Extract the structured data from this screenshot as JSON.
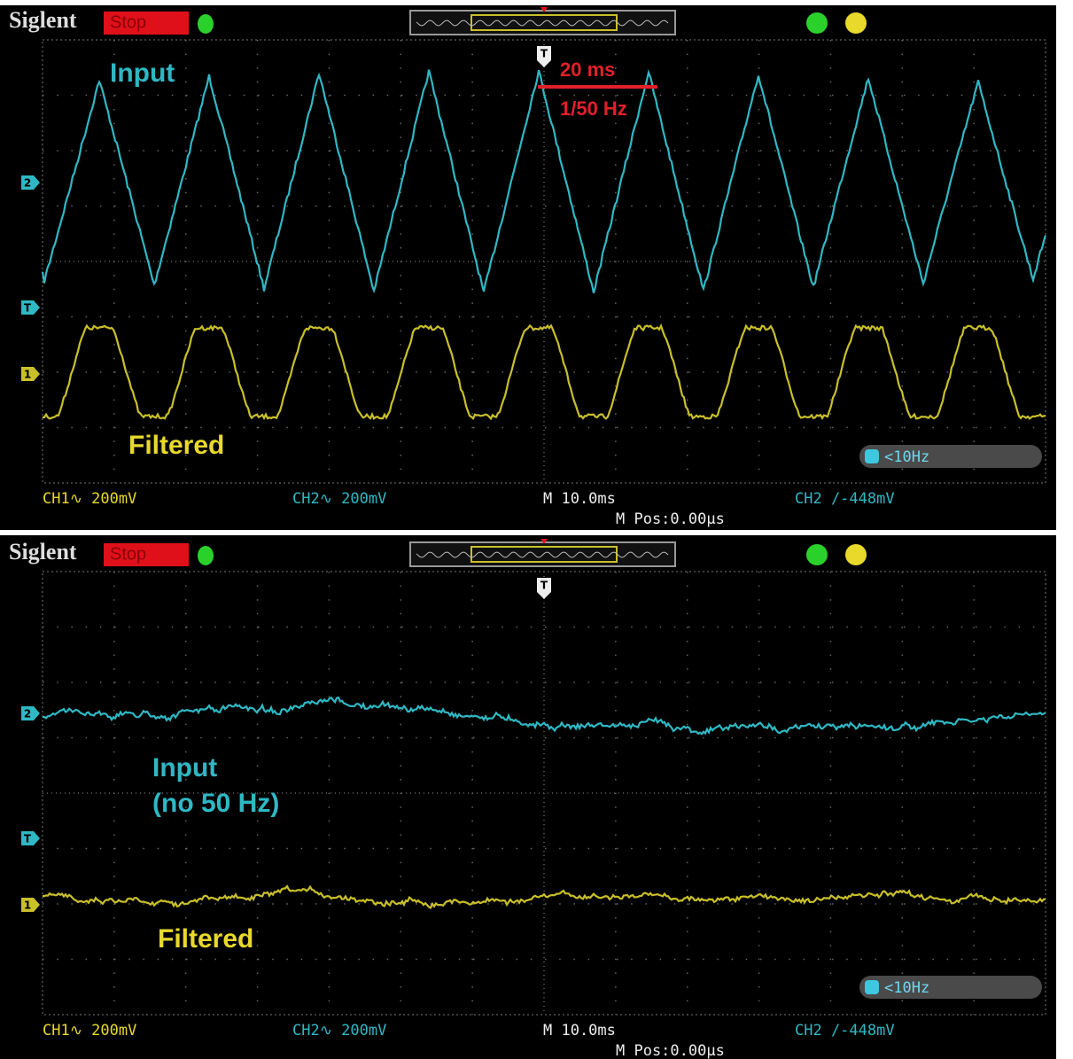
{
  "panels": [
    {
      "brand": "Siglent",
      "status": "Stop",
      "channel_2_marker": "2",
      "trigger_level_marker": "T",
      "channel_1_marker": "1",
      "trigger_position_marker": "T",
      "input_label_lines": [
        "Input"
      ],
      "filtered_label_lines": [
        "Filtered"
      ],
      "annotation": {
        "period": "20 ms",
        "frequency": "1/50 Hz"
      },
      "filter": "<10Hz",
      "status_bar": {
        "ch1": "CH1∿ 200mV",
        "ch2": "CH2∿ 200mV",
        "timebase": "M 10.0ms",
        "trigger": "CH2 /-448mV",
        "position": "M Pos:0.00µs"
      }
    },
    {
      "brand": "Siglent",
      "status": "Stop",
      "channel_2_marker": "2",
      "trigger_level_marker": "T",
      "channel_1_marker": "1",
      "trigger_position_marker": "T",
      "input_label_lines": [
        "Input",
        "(no 50 Hz)"
      ],
      "filtered_label_lines": [
        "Filtered"
      ],
      "filter": "<10Hz",
      "status_bar": {
        "ch1": "CH1∿ 200mV",
        "ch2": "CH2∿ 200mV",
        "timebase": "M 10.0ms",
        "trigger": "CH2 /-448mV",
        "position": "M Pos:0.00µs"
      }
    }
  ]
}
